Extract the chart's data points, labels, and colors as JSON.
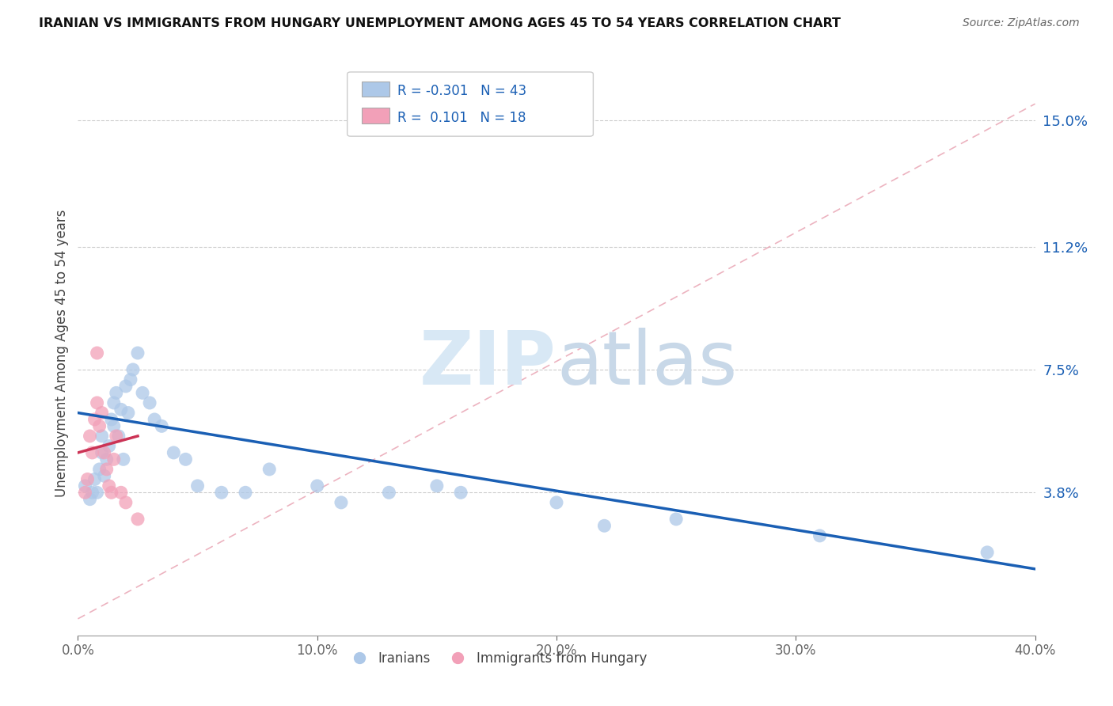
{
  "title": "IRANIAN VS IMMIGRANTS FROM HUNGARY UNEMPLOYMENT AMONG AGES 45 TO 54 YEARS CORRELATION CHART",
  "source": "Source: ZipAtlas.com",
  "ylabel": "Unemployment Among Ages 45 to 54 years",
  "xlim": [
    0.0,
    0.4
  ],
  "ylim": [
    -0.005,
    0.165
  ],
  "ytick_vals": [
    0.038,
    0.075,
    0.112,
    0.15
  ],
  "ytick_labels": [
    "3.8%",
    "7.5%",
    "11.2%",
    "15.0%"
  ],
  "xtick_vals": [
    0.0,
    0.1,
    0.2,
    0.3,
    0.4
  ],
  "xtick_labels": [
    "0.0%",
    "10.0%",
    "20.0%",
    "30.0%",
    "40.0%"
  ],
  "iranians_color": "#adc8e8",
  "hungary_color": "#f2a0b8",
  "trend_blue_color": "#1a5fb4",
  "trend_pink_color": "#cc3355",
  "legend_R_blue": "-0.301",
  "legend_N_blue": "43",
  "legend_R_pink": "0.101",
  "legend_N_pink": "18",
  "watermark_zip": "ZIP",
  "watermark_atlas": "atlas",
  "iranians_x": [
    0.003,
    0.005,
    0.006,
    0.007,
    0.008,
    0.009,
    0.01,
    0.01,
    0.011,
    0.012,
    0.013,
    0.014,
    0.015,
    0.015,
    0.016,
    0.017,
    0.018,
    0.019,
    0.02,
    0.021,
    0.022,
    0.023,
    0.025,
    0.027,
    0.03,
    0.032,
    0.035,
    0.04,
    0.045,
    0.05,
    0.06,
    0.07,
    0.08,
    0.1,
    0.11,
    0.13,
    0.15,
    0.16,
    0.2,
    0.22,
    0.25,
    0.31,
    0.38
  ],
  "iranians_y": [
    0.04,
    0.036,
    0.038,
    0.042,
    0.038,
    0.045,
    0.05,
    0.055,
    0.043,
    0.048,
    0.052,
    0.06,
    0.058,
    0.065,
    0.068,
    0.055,
    0.063,
    0.048,
    0.07,
    0.062,
    0.072,
    0.075,
    0.08,
    0.068,
    0.065,
    0.06,
    0.058,
    0.05,
    0.048,
    0.04,
    0.038,
    0.038,
    0.045,
    0.04,
    0.035,
    0.038,
    0.04,
    0.038,
    0.035,
    0.028,
    0.03,
    0.025,
    0.02
  ],
  "hungary_x": [
    0.003,
    0.004,
    0.005,
    0.006,
    0.007,
    0.008,
    0.008,
    0.009,
    0.01,
    0.011,
    0.012,
    0.013,
    0.014,
    0.015,
    0.016,
    0.018,
    0.02,
    0.025
  ],
  "hungary_y": [
    0.038,
    0.042,
    0.055,
    0.05,
    0.06,
    0.065,
    0.08,
    0.058,
    0.062,
    0.05,
    0.045,
    0.04,
    0.038,
    0.048,
    0.055,
    0.038,
    0.035,
    0.03
  ],
  "blue_trend_x0": 0.0,
  "blue_trend_y0": 0.062,
  "blue_trend_x1": 0.4,
  "blue_trend_y1": 0.015,
  "pink_trend_x0": 0.0,
  "pink_trend_y0": 0.05,
  "pink_trend_x1": 0.025,
  "pink_trend_y1": 0.055,
  "ref_line_x0": 0.0,
  "ref_line_y0": 0.0,
  "ref_line_x1": 0.4,
  "ref_line_y1": 0.155
}
